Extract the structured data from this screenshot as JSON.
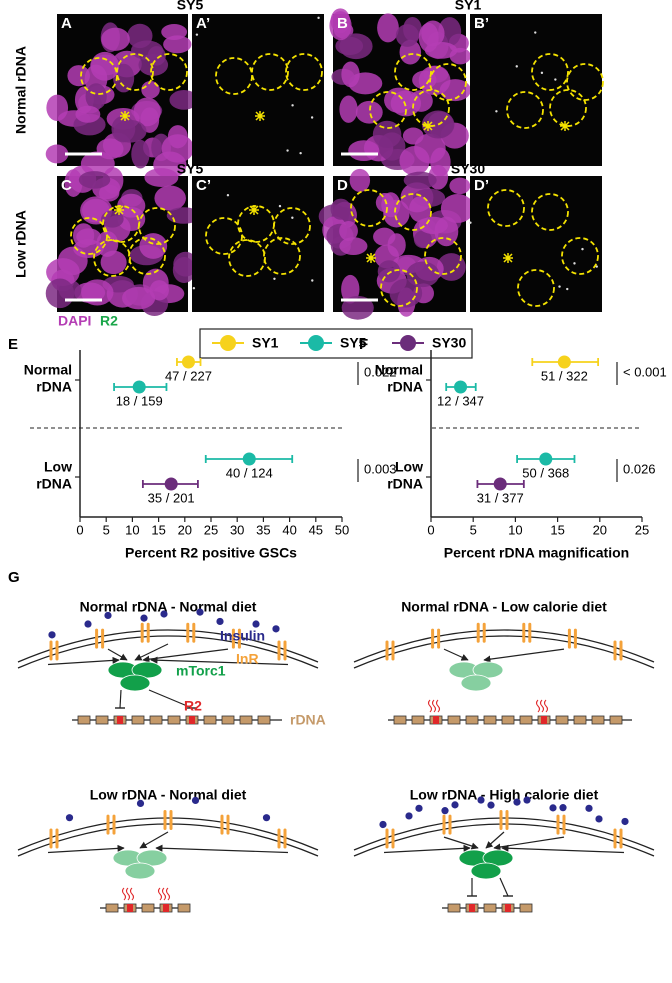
{
  "micrographs": {
    "titles": [
      "SY5",
      "SY1",
      "SY5",
      "SY30"
    ],
    "rows": [
      "Normal rDNA",
      "Low rDNA"
    ],
    "panels": [
      "A",
      "A’",
      "B",
      "B’",
      "C",
      "C’",
      "D",
      "D’"
    ],
    "stain": [
      "DAPI",
      "R2"
    ]
  },
  "legend": [
    {
      "name": "SY1",
      "color": "#f6d21c"
    },
    {
      "name": "SY5",
      "color": "#1bbaa6"
    },
    {
      "name": "SY30",
      "color": "#6b2d7b"
    }
  ],
  "chart_data": [
    {
      "type": "dot",
      "panel": "E",
      "xlabel": "Percent R2 positive GSCs",
      "groups": [
        [
          "Normal",
          "rDNA"
        ],
        [
          "Low",
          "rDNA"
        ]
      ],
      "xlim": [
        0,
        50
      ],
      "xticks": [
        0,
        5,
        10,
        15,
        20,
        25,
        30,
        35,
        40,
        45,
        50
      ],
      "points": [
        {
          "series": 0,
          "group": 0,
          "value": 20.7,
          "ci": [
            18.5,
            23
          ],
          "label": "47 / 227"
        },
        {
          "series": 1,
          "group": 0,
          "value": 11.3,
          "ci": [
            6.5,
            16.5
          ],
          "label": "18 / 159"
        },
        {
          "series": 1,
          "group": 1,
          "value": 32.3,
          "ci": [
            24,
            40.5
          ],
          "label": "40 / 124"
        },
        {
          "series": 2,
          "group": 1,
          "value": 17.4,
          "ci": [
            12,
            22.5
          ],
          "label": "35 / 201"
        }
      ],
      "pvalues": [
        "0.022",
        "0.003"
      ]
    },
    {
      "type": "dot",
      "panel": "F",
      "xlabel": "Percent rDNA magnification",
      "groups": [
        [
          "Normal",
          "rDNA"
        ],
        [
          "Low",
          "rDNA"
        ]
      ],
      "xlim": [
        0,
        25
      ],
      "xticks": [
        0,
        5,
        10,
        15,
        20,
        25
      ],
      "points": [
        {
          "series": 0,
          "group": 0,
          "value": 15.8,
          "ci": [
            12,
            19.8
          ],
          "label": "51 / 322"
        },
        {
          "series": 1,
          "group": 0,
          "value": 3.5,
          "ci": [
            1.8,
            5.3
          ],
          "label": "12 / 347"
        },
        {
          "series": 1,
          "group": 1,
          "value": 13.6,
          "ci": [
            10.2,
            17
          ],
          "label": "50 / 368"
        },
        {
          "series": 2,
          "group": 1,
          "value": 8.2,
          "ci": [
            5.5,
            11
          ],
          "label": "31 / 377"
        }
      ],
      "pvalues": [
        "< 0.001",
        "0.026"
      ]
    }
  ],
  "diagram": {
    "panel": "G",
    "titles": [
      "Normal rDNA - Normal diet",
      "Normal rDNA - Low calorie diet",
      "Low rDNA - Normal diet",
      "Low rDNA - High calorie diet"
    ],
    "labels": {
      "insulin": "Insulin",
      "receptor": "InR",
      "complex": "mTorc1",
      "retrotransposon": "R2",
      "locus": "rDNA"
    }
  }
}
